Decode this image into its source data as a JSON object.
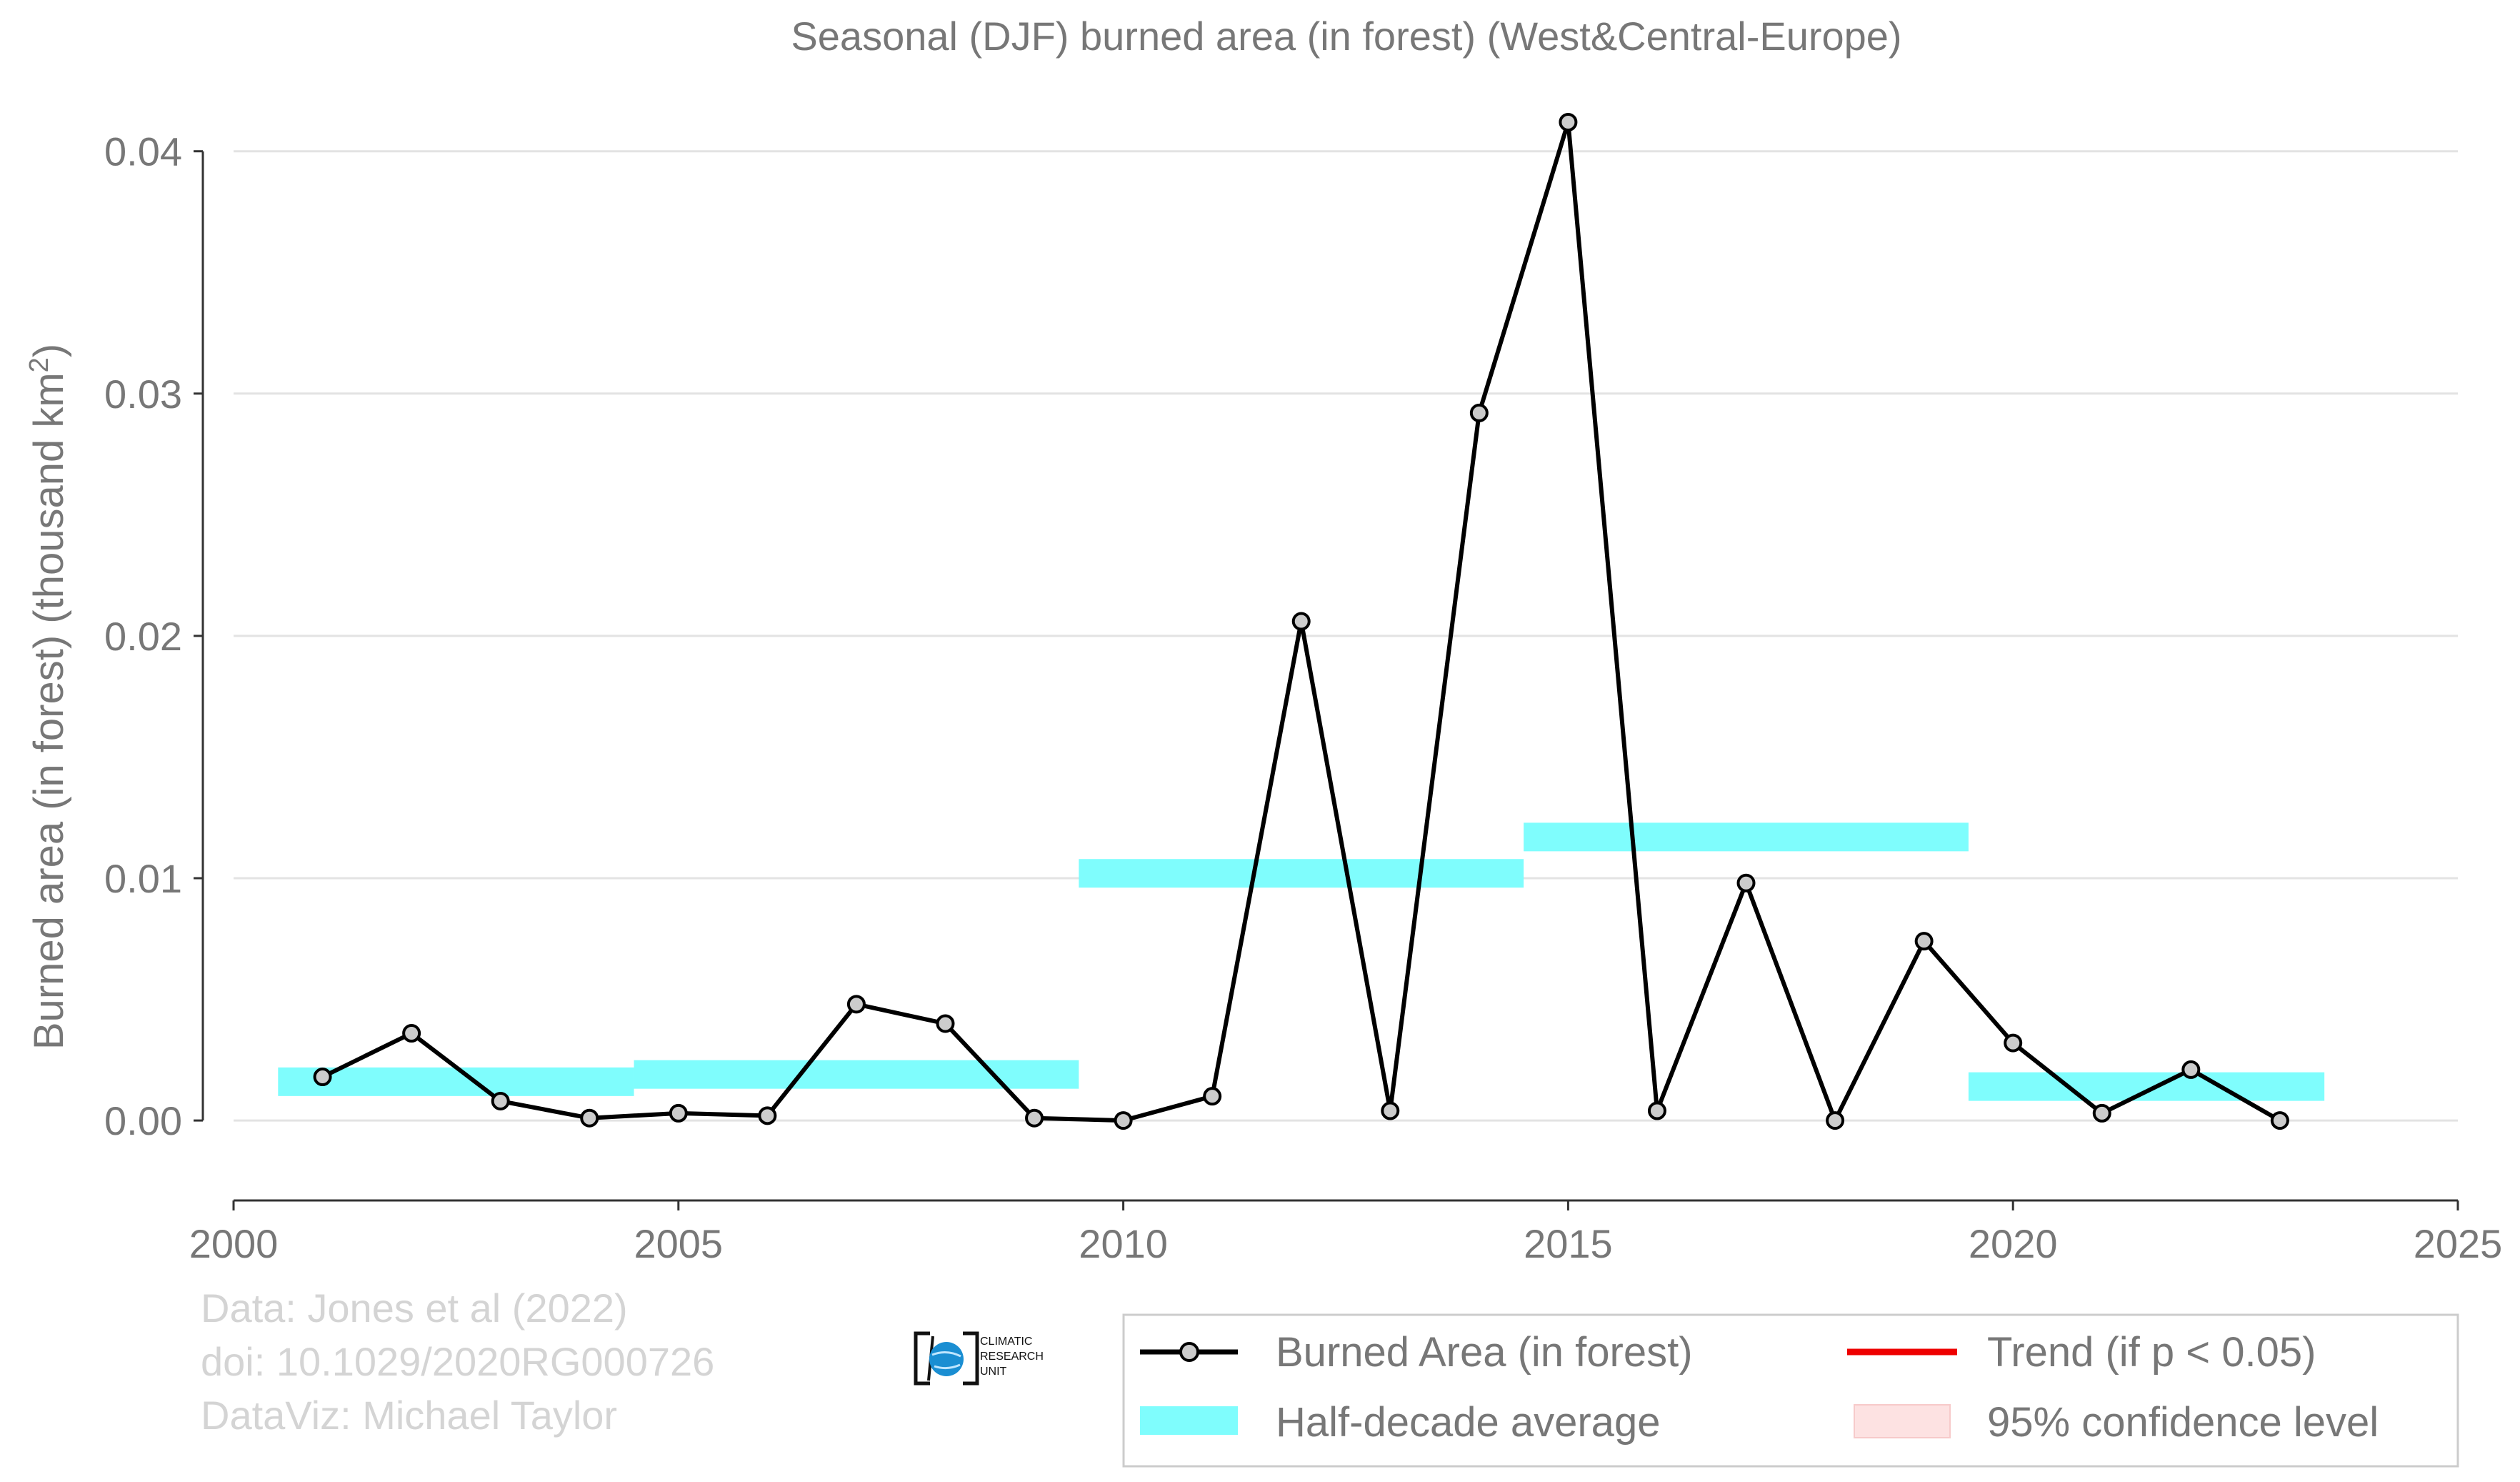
{
  "chart_data": {
    "type": "line",
    "title": "Seasonal (DJF) burned area (in forest) (West&Central-Europe)",
    "xlabel": "",
    "ylabel": "Burned area (in forest) (thousand km",
    "ylabel_superscript": "2",
    "ylabel_close": ")",
    "xlim": [
      2000,
      2025
    ],
    "ylim": [
      -0.0033,
      0.0412
    ],
    "x_ticks": [
      2000,
      2005,
      2010,
      2015,
      2020,
      2025
    ],
    "y_ticks": [
      0.0,
      0.01,
      0.02,
      0.03,
      0.04
    ],
    "x_tick_labels": [
      "2000",
      "2005",
      "2010",
      "2015",
      "2020",
      "2025"
    ],
    "y_tick_labels": [
      "0.00",
      "0.01",
      "0.02",
      "0.03",
      "0.04"
    ],
    "grid": "horizontal",
    "series": [
      {
        "name": "Burned Area (in forest)",
        "color": "#000000",
        "marker_fill": "#cccccc",
        "x": [
          2001,
          2002,
          2003,
          2004,
          2005,
          2006,
          2007,
          2008,
          2009,
          2010,
          2011,
          2012,
          2013,
          2014,
          2015,
          2016,
          2017,
          2018,
          2019,
          2020,
          2021,
          2022,
          2023
        ],
        "y": [
          0.0018,
          0.0036,
          0.0008,
          0.0001,
          0.0003,
          0.0002,
          0.0048,
          0.004,
          0.0001,
          0.0,
          0.001,
          0.0206,
          0.0004,
          0.0292,
          0.0412,
          0.0004,
          0.0098,
          0.0,
          0.0074,
          0.0032,
          0.0003,
          0.0021,
          0.0
        ]
      }
    ],
    "half_decade_average": {
      "name": "Half-decade average",
      "color": "#7ffdfd",
      "segments": [
        {
          "x_start": 2000.5,
          "x_end": 2004.5,
          "value": 0.0016
        },
        {
          "x_start": 2004.5,
          "x_end": 2009.5,
          "value": 0.0019
        },
        {
          "x_start": 2009.5,
          "x_end": 2014.5,
          "value": 0.0102
        },
        {
          "x_start": 2014.5,
          "x_end": 2019.5,
          "value": 0.0117
        },
        {
          "x_start": 2019.5,
          "x_end": 2023.5,
          "value": 0.0014
        }
      ]
    },
    "legend": {
      "placement": "bottom-right",
      "entries": [
        {
          "label": "Burned Area (in forest)",
          "kind": "line-marker",
          "color": "#000000"
        },
        {
          "label": "Trend (if p < 0.05)",
          "kind": "line",
          "color": "#ff0000"
        },
        {
          "label": "Half-decade average",
          "kind": "band",
          "color": "#7ffdfd"
        },
        {
          "label": "95% confidence level",
          "kind": "band",
          "color": "#fde0e0"
        }
      ]
    },
    "credits": [
      "Data: Jones et al (2022)",
      "doi: 10.1029/2020RG000726",
      "DataViz: Michael Taylor"
    ],
    "logo_text": [
      "CLIMATIC",
      "RESEARCH",
      "UNIT"
    ]
  }
}
